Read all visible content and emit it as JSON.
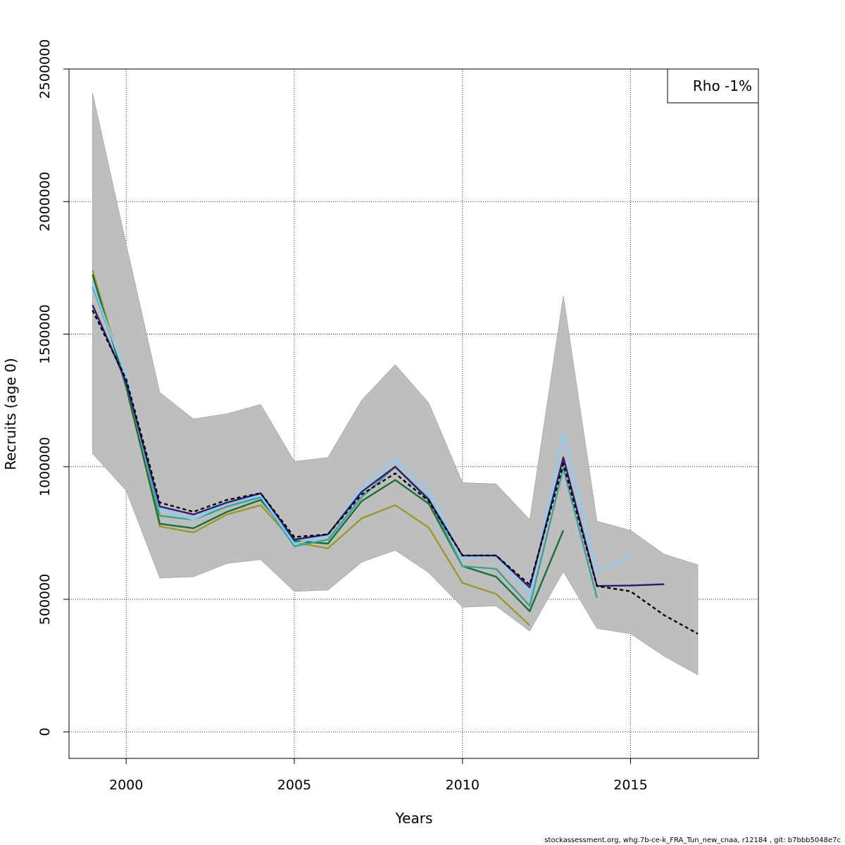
{
  "chart_data": {
    "type": "line",
    "xlabel": "Years",
    "ylabel": "Recruits (age 0)",
    "xlim": [
      1998.3,
      2018.8
    ],
    "ylim": [
      -100000,
      2500000
    ],
    "x_ticks": [
      2000,
      2005,
      2010,
      2015
    ],
    "y_ticks": [
      0,
      500000,
      1000000,
      1500000,
      2000000,
      2500000
    ],
    "x_tick_labels": [
      "2000",
      "2005",
      "2010",
      "2015"
    ],
    "y_tick_labels": [
      "0",
      "500000",
      "1000000",
      "1500000",
      "2000000",
      "2500000"
    ],
    "grid": true,
    "legend": {
      "position": "top-right",
      "text": "Rho -1%"
    },
    "confidence_band": {
      "x": [
        1999,
        2000,
        2001,
        2002,
        2003,
        2004,
        2005,
        2006,
        2007,
        2008,
        2009,
        2010,
        2011,
        2012,
        2013,
        2014,
        2015,
        2016,
        2017
      ],
      "upper": [
        2410000,
        1840000,
        1280000,
        1180000,
        1200000,
        1235000,
        1020000,
        1035000,
        1250000,
        1385000,
        1240000,
        940000,
        935000,
        800000,
        1645000,
        795000,
        760000,
        670000,
        630000
      ],
      "lower": [
        1050000,
        910000,
        580000,
        585000,
        635000,
        650000,
        530000,
        535000,
        640000,
        685000,
        600000,
        470000,
        475000,
        380000,
        605000,
        390000,
        370000,
        285000,
        215000
      ]
    },
    "series": [
      {
        "color": "#000000",
        "dashed": true,
        "x": [
          1999,
          2000,
          2001,
          2002,
          2003,
          2004,
          2005,
          2006,
          2007,
          2008,
          2009,
          2010,
          2011,
          2012,
          2013,
          2014,
          2015,
          2016,
          2017
        ],
        "y": [
          1590000,
          1330000,
          865000,
          830000,
          875000,
          900000,
          735000,
          745000,
          895000,
          975000,
          870000,
          665000,
          665000,
          555000,
          1010000,
          550000,
          530000,
          440000,
          370000
        ]
      },
      {
        "color": "#2a1d7a",
        "dashed": false,
        "x": [
          1999,
          2000,
          2001,
          2002,
          2003,
          2004,
          2005,
          2006,
          2007,
          2008,
          2009,
          2010,
          2011,
          2012,
          2013,
          2014,
          2015,
          2016
        ],
        "y": [
          1610000,
          1320000,
          850000,
          820000,
          865000,
          900000,
          725000,
          745000,
          905000,
          1000000,
          875000,
          665000,
          665000,
          545000,
          1035000,
          550000,
          552000,
          557000
        ]
      },
      {
        "color": "#87cefa",
        "dashed": false,
        "x": [
          1999,
          2000,
          2001,
          2002,
          2003,
          2004,
          2005,
          2006,
          2007,
          2008,
          2009,
          2010,
          2011,
          2012,
          2013,
          2014,
          2015
        ],
        "y": [
          1690000,
          1340000,
          840000,
          800000,
          865000,
          890000,
          710000,
          740000,
          920000,
          1030000,
          910000,
          655000,
          665000,
          515000,
          1125000,
          605000,
          665000
        ]
      },
      {
        "color": "#3ba199",
        "dashed": false,
        "x": [
          1999,
          2000,
          2001,
          2002,
          2003,
          2004,
          2005,
          2006,
          2007,
          2008,
          2009,
          2010,
          2011,
          2012,
          2013,
          2014
        ],
        "y": [
          1680000,
          1340000,
          815000,
          800000,
          850000,
          885000,
          700000,
          725000,
          885000,
          1000000,
          880000,
          625000,
          615000,
          475000,
          995000,
          505000
        ]
      },
      {
        "color": "#17703a",
        "dashed": false,
        "x": [
          1999,
          2000,
          2001,
          2002,
          2003,
          2004,
          2005,
          2006,
          2007,
          2008,
          2009,
          2010,
          2011,
          2012,
          2013
        ],
        "y": [
          1725000,
          1300000,
          785000,
          768000,
          830000,
          875000,
          720000,
          710000,
          870000,
          950000,
          860000,
          625000,
          585000,
          455000,
          760000
        ]
      },
      {
        "color": "#9a9a2a",
        "dashed": false,
        "x": [
          1999,
          2000,
          2001,
          2002,
          2003,
          2004,
          2005,
          2006,
          2007,
          2008,
          2009,
          2010,
          2011,
          2012
        ],
        "y": [
          1740000,
          1310000,
          775000,
          752000,
          820000,
          855000,
          715000,
          692000,
          805000,
          855000,
          770000,
          562000,
          520000,
          402000
        ]
      }
    ]
  },
  "footer_text": "stockassessment.org, whg.7b-ce-k_FRA_Tun_new_cnaa, r12184 , git: b7bbb5048e7c"
}
